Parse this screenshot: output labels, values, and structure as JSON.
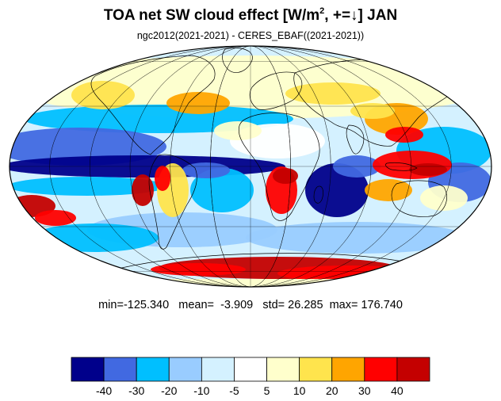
{
  "title": {
    "main": "TOA net SW cloud effect [W/m",
    "sup": "2",
    "suffix": ", +=↓]  JAN"
  },
  "subtitle": "ngc2012(2021-2021) - CERES_EBAF((2021-2021))",
  "stats": {
    "min_label": "min=",
    "min": "-125.340",
    "mean_label": "mean=",
    "mean": "-3.909",
    "std_label": "std=",
    "std": "26.285",
    "max_label": "max=",
    "max": "176.740"
  },
  "map": {
    "projection": "mollweide",
    "graticule": "30-degree",
    "coastlines": true
  },
  "colorbar": {
    "tick_labels": [
      "-40",
      "-30",
      "-20",
      "-10",
      "-5",
      "5",
      "10",
      "20",
      "30",
      "40"
    ],
    "colors": [
      "#00008b",
      "#4169e1",
      "#00bfff",
      "#99ccff",
      "#d4f1ff",
      "#ffffff",
      "#ffffcc",
      "#ffe44d",
      "#ffa500",
      "#ff0000",
      "#c40000"
    ]
  },
  "regions": [
    {
      "name": "pacific-blue-north",
      "color": "#00bfff"
    },
    {
      "name": "pacific-blue-equator",
      "color": "#00008b"
    },
    {
      "name": "sahara-clear",
      "color": "#ffffff"
    },
    {
      "name": "indian-ocean-blue",
      "color": "#00008b"
    },
    {
      "name": "maritime-continent-red",
      "color": "#ff0000"
    },
    {
      "name": "antarctic-red",
      "color": "#c40000"
    },
    {
      "name": "southern-africa-red",
      "color": "#ff0000"
    },
    {
      "name": "peru-stratocumulus-red",
      "color": "#ff0000"
    }
  ]
}
